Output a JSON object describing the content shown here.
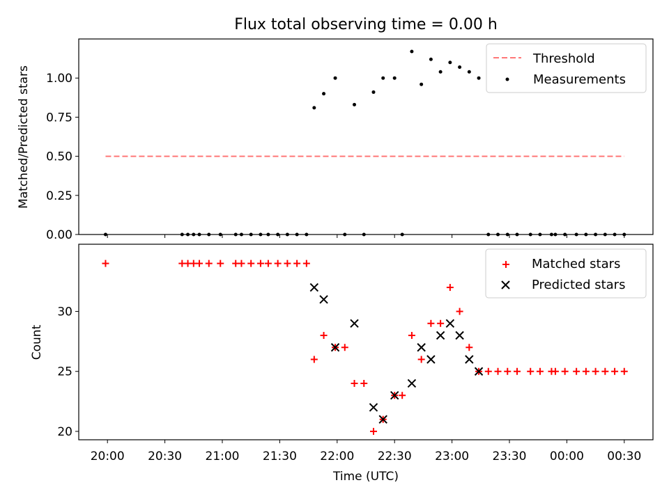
{
  "chart_data": [
    {
      "type": "scatter",
      "title": "Flux total observing time = 0.00 h",
      "xlabel": "",
      "ylabel": "Matched/Predicted stars",
      "ylim": [
        0,
        1.25
      ],
      "yticks": [
        "0.00",
        "0.25",
        "0.50",
        "0.75",
        "1.00"
      ],
      "yticks_values": [
        0,
        0.25,
        0.5,
        0.75,
        1.0
      ],
      "legend_position": "top-right",
      "series": [
        {
          "name": "Threshold",
          "style": "dashed-line",
          "color": "#ff7777",
          "points": [
            {
              "t": "19:59",
              "y": 0.5
            },
            {
              "t": "00:30",
              "y": 0.5
            }
          ]
        },
        {
          "name": "Measurements",
          "style": "dot",
          "color": "#000000",
          "points": [
            {
              "t": "19:59",
              "y": 0.0
            },
            {
              "t": "20:39",
              "y": 0.0
            },
            {
              "t": "20:42",
              "y": 0.0
            },
            {
              "t": "20:45",
              "y": 0.0
            },
            {
              "t": "20:48",
              "y": 0.0
            },
            {
              "t": "20:53",
              "y": 0.0
            },
            {
              "t": "20:59",
              "y": 0.0
            },
            {
              "t": "21:07",
              "y": 0.0
            },
            {
              "t": "21:10",
              "y": 0.0
            },
            {
              "t": "21:15",
              "y": 0.0
            },
            {
              "t": "21:20",
              "y": 0.0
            },
            {
              "t": "21:24",
              "y": 0.0
            },
            {
              "t": "21:29",
              "y": 0.0
            },
            {
              "t": "21:34",
              "y": 0.0
            },
            {
              "t": "21:39",
              "y": 0.0
            },
            {
              "t": "21:44",
              "y": 0.0
            },
            {
              "t": "21:48",
              "y": 0.81
            },
            {
              "t": "21:53",
              "y": 0.9
            },
            {
              "t": "21:59",
              "y": 1.0
            },
            {
              "t": "22:04",
              "y": 0.0
            },
            {
              "t": "22:09",
              "y": 0.83
            },
            {
              "t": "22:14",
              "y": 0.0
            },
            {
              "t": "22:19",
              "y": 0.91
            },
            {
              "t": "22:24",
              "y": 1.0
            },
            {
              "t": "22:30",
              "y": 1.0
            },
            {
              "t": "22:34",
              "y": 0.0
            },
            {
              "t": "22:39",
              "y": 1.17
            },
            {
              "t": "22:44",
              "y": 0.96
            },
            {
              "t": "22:49",
              "y": 1.12
            },
            {
              "t": "22:54",
              "y": 1.04
            },
            {
              "t": "22:59",
              "y": 1.1
            },
            {
              "t": "23:04",
              "y": 1.07
            },
            {
              "t": "23:09",
              "y": 1.04
            },
            {
              "t": "23:14",
              "y": 1.0
            },
            {
              "t": "23:19",
              "y": 0.0
            },
            {
              "t": "23:24",
              "y": 0.0
            },
            {
              "t": "23:29",
              "y": 0.0
            },
            {
              "t": "23:34",
              "y": 0.0
            },
            {
              "t": "23:41",
              "y": 0.0
            },
            {
              "t": "23:46",
              "y": 0.0
            },
            {
              "t": "23:52",
              "y": 0.0
            },
            {
              "t": "23:54",
              "y": 0.0
            },
            {
              "t": "23:59",
              "y": 0.0
            },
            {
              "t": "00:05",
              "y": 0.0
            },
            {
              "t": "00:10",
              "y": 0.0
            },
            {
              "t": "00:15",
              "y": 0.0
            },
            {
              "t": "00:20",
              "y": 0.0
            },
            {
              "t": "00:25",
              "y": 0.0
            },
            {
              "t": "00:30",
              "y": 0.0
            }
          ]
        }
      ]
    },
    {
      "type": "scatter",
      "title": "",
      "xlabel": "Time (UTC)",
      "ylabel": "Count",
      "ylim": [
        19.3,
        35.6
      ],
      "yticks": [
        "20",
        "25",
        "30"
      ],
      "yticks_values": [
        20,
        25,
        30
      ],
      "xticks": [
        "20:00",
        "20:30",
        "21:00",
        "21:30",
        "22:00",
        "22:30",
        "23:00",
        "23:30",
        "00:00",
        "00:30"
      ],
      "x_range": [
        "19:45",
        "00:45"
      ],
      "legend_position": "top-right",
      "series": [
        {
          "name": "Matched stars",
          "style": "plus",
          "color": "#ff0000",
          "points": [
            {
              "t": "19:59",
              "y": 34
            },
            {
              "t": "20:39",
              "y": 34
            },
            {
              "t": "20:42",
              "y": 34
            },
            {
              "t": "20:45",
              "y": 34
            },
            {
              "t": "20:48",
              "y": 34
            },
            {
              "t": "20:53",
              "y": 34
            },
            {
              "t": "20:59",
              "y": 34
            },
            {
              "t": "21:07",
              "y": 34
            },
            {
              "t": "21:10",
              "y": 34
            },
            {
              "t": "21:15",
              "y": 34
            },
            {
              "t": "21:20",
              "y": 34
            },
            {
              "t": "21:24",
              "y": 34
            },
            {
              "t": "21:29",
              "y": 34
            },
            {
              "t": "21:34",
              "y": 34
            },
            {
              "t": "21:39",
              "y": 34
            },
            {
              "t": "21:44",
              "y": 34
            },
            {
              "t": "21:48",
              "y": 26
            },
            {
              "t": "21:53",
              "y": 28
            },
            {
              "t": "21:59",
              "y": 27
            },
            {
              "t": "22:04",
              "y": 27
            },
            {
              "t": "22:09",
              "y": 24
            },
            {
              "t": "22:14",
              "y": 24
            },
            {
              "t": "22:19",
              "y": 20
            },
            {
              "t": "22:24",
              "y": 21
            },
            {
              "t": "22:30",
              "y": 23
            },
            {
              "t": "22:34",
              "y": 23
            },
            {
              "t": "22:39",
              "y": 28
            },
            {
              "t": "22:44",
              "y": 26
            },
            {
              "t": "22:49",
              "y": 29
            },
            {
              "t": "22:54",
              "y": 29
            },
            {
              "t": "22:59",
              "y": 32
            },
            {
              "t": "23:04",
              "y": 30
            },
            {
              "t": "23:09",
              "y": 27
            },
            {
              "t": "23:14",
              "y": 25
            },
            {
              "t": "23:19",
              "y": 25
            },
            {
              "t": "23:24",
              "y": 25
            },
            {
              "t": "23:29",
              "y": 25
            },
            {
              "t": "23:34",
              "y": 25
            },
            {
              "t": "23:41",
              "y": 25
            },
            {
              "t": "23:46",
              "y": 25
            },
            {
              "t": "23:52",
              "y": 25
            },
            {
              "t": "23:54",
              "y": 25
            },
            {
              "t": "23:59",
              "y": 25
            },
            {
              "t": "00:05",
              "y": 25
            },
            {
              "t": "00:10",
              "y": 25
            },
            {
              "t": "00:15",
              "y": 25
            },
            {
              "t": "00:20",
              "y": 25
            },
            {
              "t": "00:25",
              "y": 25
            },
            {
              "t": "00:30",
              "y": 25
            }
          ]
        },
        {
          "name": "Predicted stars",
          "style": "x",
          "color": "#000000",
          "points": [
            {
              "t": "21:48",
              "y": 32
            },
            {
              "t": "21:53",
              "y": 31
            },
            {
              "t": "21:59",
              "y": 27
            },
            {
              "t": "22:09",
              "y": 29
            },
            {
              "t": "22:19",
              "y": 22
            },
            {
              "t": "22:24",
              "y": 21
            },
            {
              "t": "22:30",
              "y": 23
            },
            {
              "t": "22:39",
              "y": 24
            },
            {
              "t": "22:44",
              "y": 27
            },
            {
              "t": "22:49",
              "y": 26
            },
            {
              "t": "22:54",
              "y": 28
            },
            {
              "t": "22:59",
              "y": 29
            },
            {
              "t": "23:04",
              "y": 28
            },
            {
              "t": "23:09",
              "y": 26
            },
            {
              "t": "23:14",
              "y": 25
            }
          ]
        }
      ]
    }
  ]
}
